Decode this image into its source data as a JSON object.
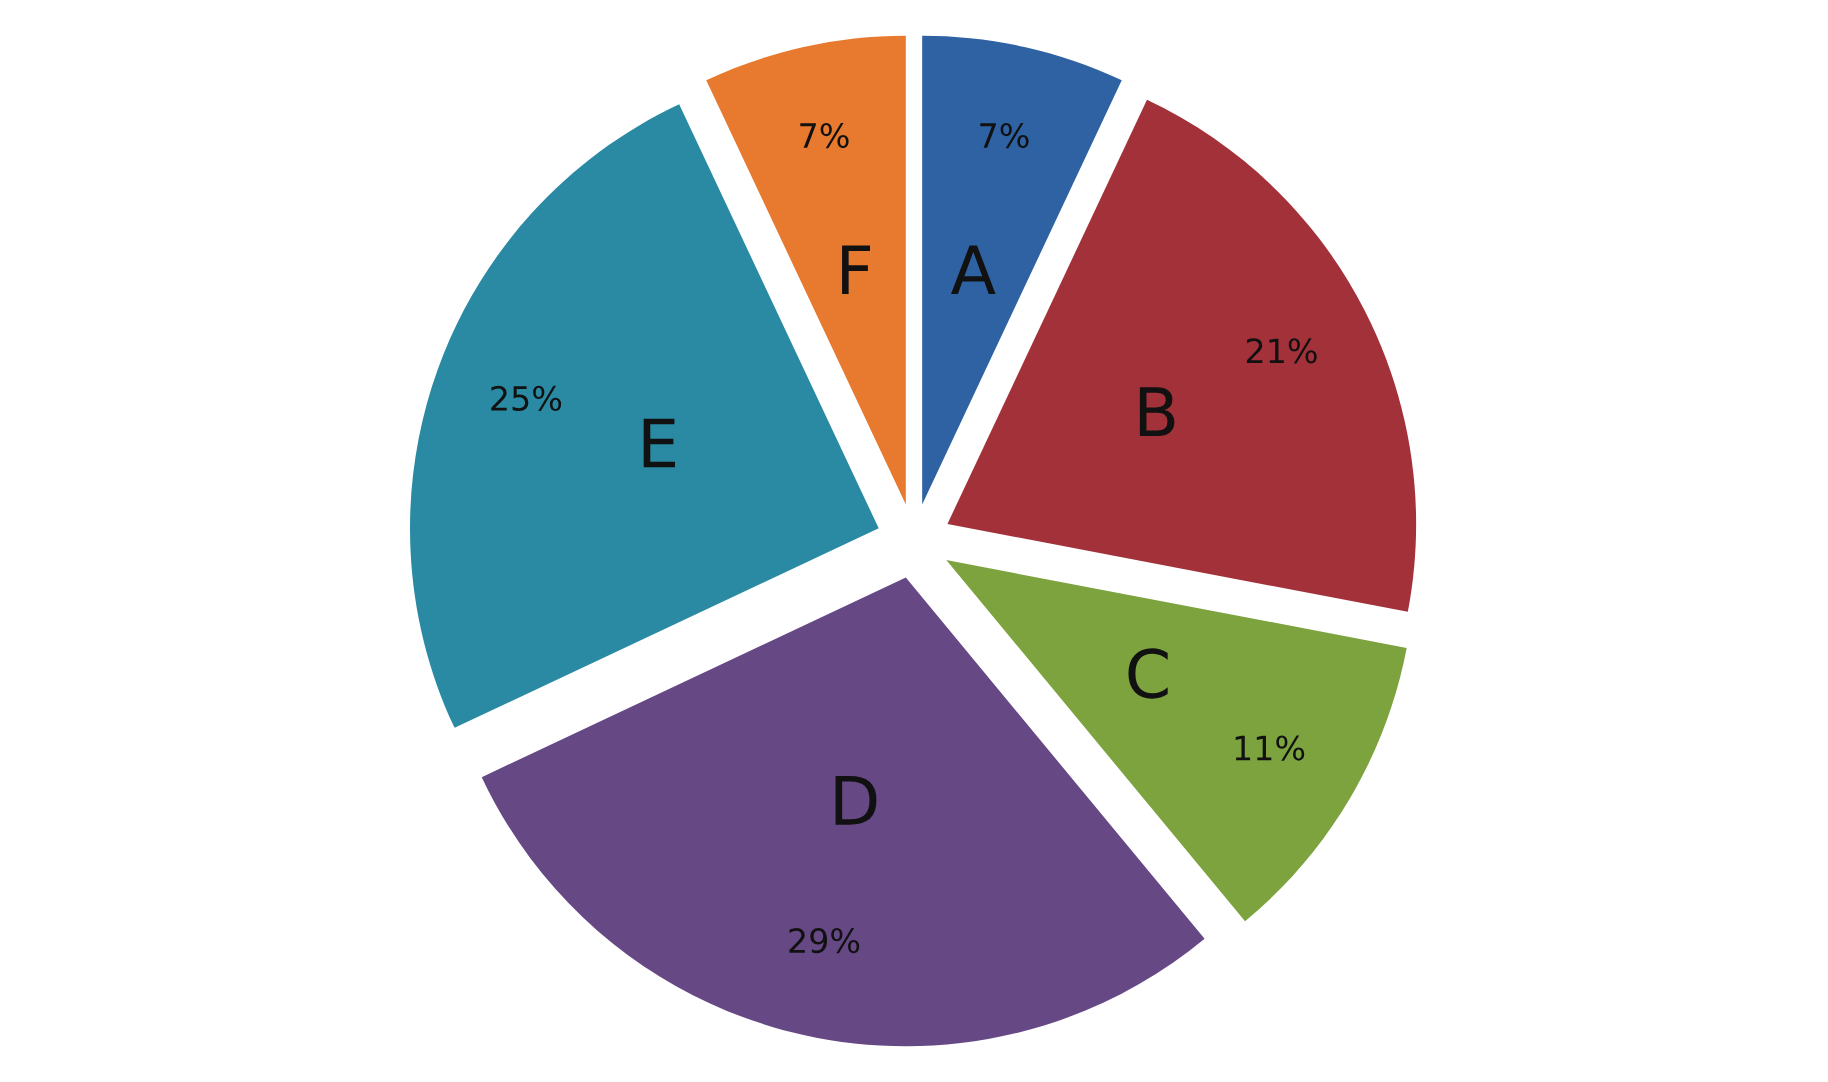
{
  "chart_data": {
    "type": "pie",
    "categories": [
      "A",
      "B",
      "C",
      "D",
      "E",
      "F"
    ],
    "values": [
      7,
      21,
      11,
      29,
      25,
      7
    ],
    "colors": [
      "#2f62a3",
      "#a3313a",
      "#7da33f",
      "#664884",
      "#2a8aa3",
      "#e87a30"
    ],
    "value_labels": [
      "7%",
      "21%",
      "11%",
      "29%",
      "25%",
      "7%"
    ]
  }
}
